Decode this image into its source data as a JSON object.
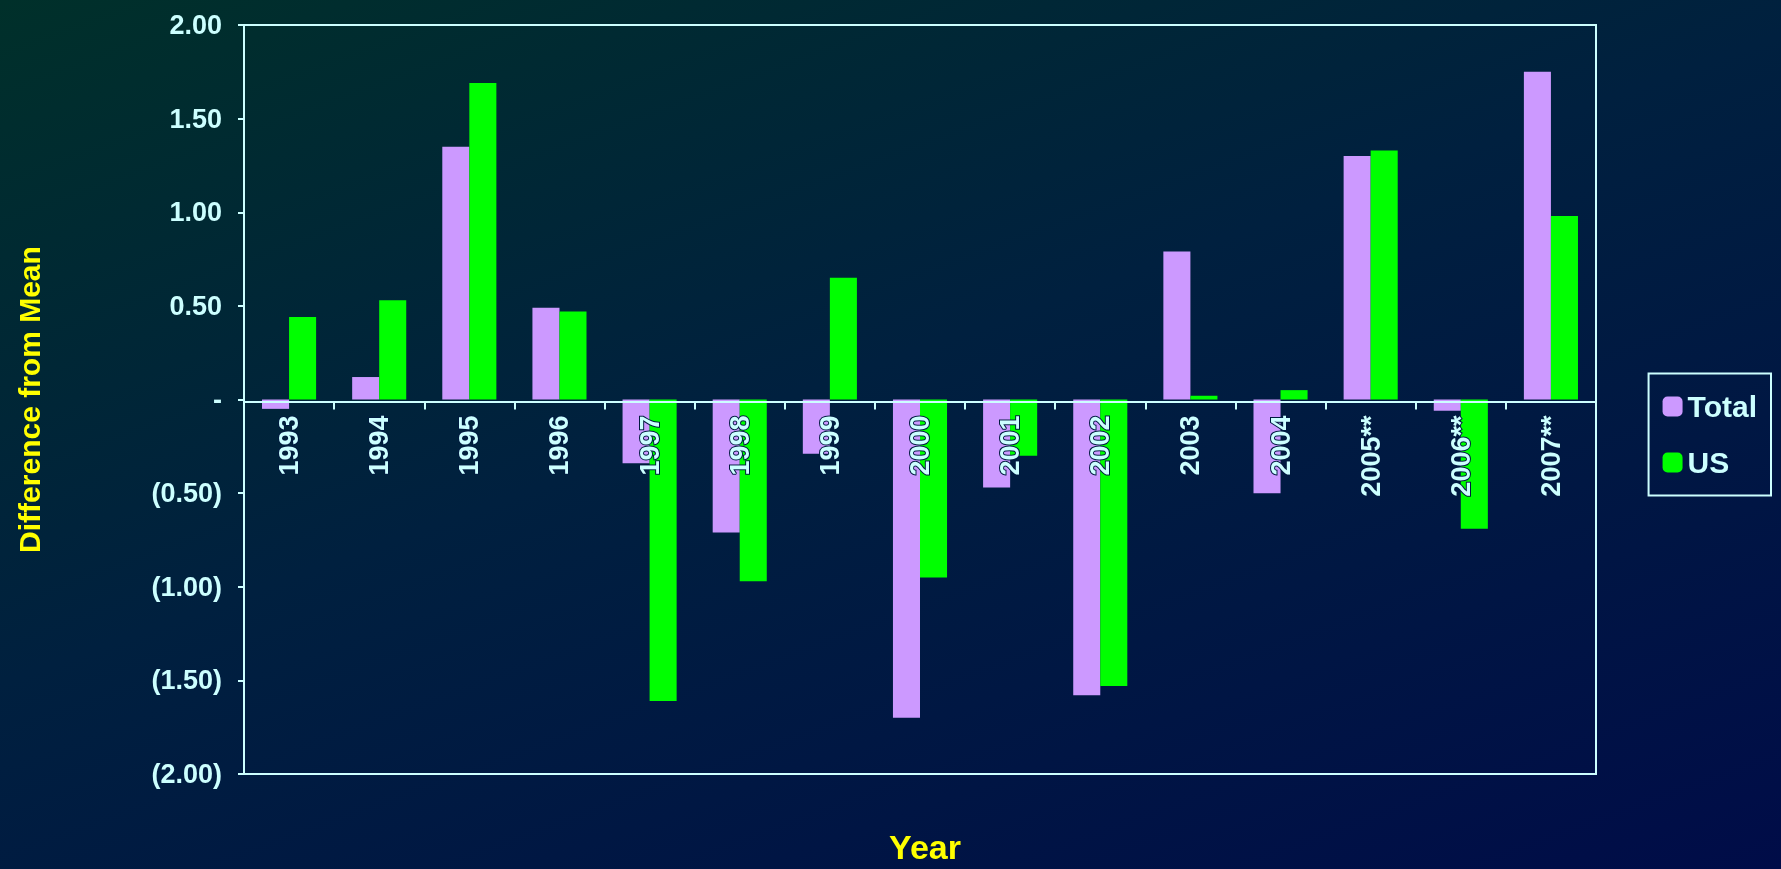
{
  "chart_data": {
    "type": "bar",
    "xlabel": "Year",
    "ylabel": "Difference from Mean",
    "categories": [
      "1993",
      "1994",
      "1995",
      "1996",
      "1997",
      "1998",
      "1999",
      "2000",
      "2001",
      "2002",
      "2003",
      "2004",
      "2005**",
      "2006**",
      "2007**"
    ],
    "series": [
      {
        "name": "Total",
        "color": "#cc99ff",
        "values": [
          -0.05,
          0.12,
          1.35,
          0.49,
          -0.34,
          -0.71,
          -0.29,
          -1.7,
          -0.47,
          -1.58,
          0.79,
          -0.5,
          1.3,
          -0.06,
          1.75
        ]
      },
      {
        "name": "US",
        "color": "#00ff00",
        "values": [
          0.44,
          0.53,
          1.69,
          0.47,
          -1.61,
          -0.97,
          0.65,
          -0.95,
          -0.3,
          -1.53,
          0.02,
          0.05,
          1.33,
          -0.69,
          0.98
        ]
      }
    ],
    "ylim": [
      -2,
      2
    ],
    "yticks": [
      {
        "value": -2,
        "label": "(2.00)"
      },
      {
        "value": -1.5,
        "label": "(1.50)"
      },
      {
        "value": -1,
        "label": "(1.00)"
      },
      {
        "value": -0.5,
        "label": "(0.50)"
      },
      {
        "value": 0,
        "label": "-"
      },
      {
        "value": 0.5,
        "label": "0.50"
      },
      {
        "value": 1,
        "label": "1.00"
      },
      {
        "value": 1.5,
        "label": "1.50"
      },
      {
        "value": 2,
        "label": "2.00"
      }
    ],
    "grid": false,
    "legend": "right"
  }
}
